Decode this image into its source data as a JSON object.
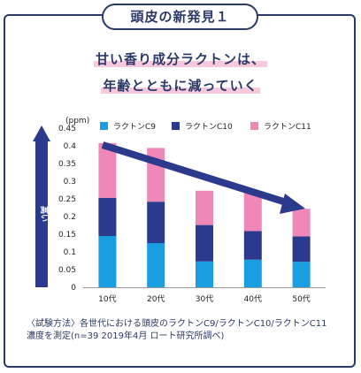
{
  "header": {
    "tag": "頭皮の新発見１"
  },
  "headline": {
    "line1": "甘い香り成分ラクトンは、",
    "line2": "年齢とともに減っていく"
  },
  "axis_arrow_label": "高い",
  "note": {
    "line1": "〈試験方法〉各世代における頭皮のラクトンC9/ラクトンC10/ラクトンC11",
    "line2": "濃度を測定(n=39 2019年4月 ロート研究所調べ)"
  },
  "chart_data": {
    "type": "bar",
    "stacked": true,
    "ylabel": "(ppm)",
    "ylim": [
      0,
      0.45
    ],
    "yticks": [
      "0",
      "0.05",
      "0.1",
      "0.15",
      "0.2",
      "0.25",
      "0.3",
      "0.35",
      "0.4",
      "0.45"
    ],
    "categories": [
      "10代",
      "20代",
      "30代",
      "40代",
      "50代"
    ],
    "legend_position": "top",
    "series": [
      {
        "name": "ラクトンC9",
        "color": "#1a9ee2",
        "values": [
          0.145,
          0.125,
          0.073,
          0.078,
          0.072
        ]
      },
      {
        "name": "ラクトンC10",
        "color": "#2b3a8c",
        "values": [
          0.108,
          0.117,
          0.103,
          0.081,
          0.072
        ]
      },
      {
        "name": "ラクトンC11",
        "color": "#ef88b8",
        "values": [
          0.155,
          0.152,
          0.097,
          0.108,
          0.078
        ]
      }
    ],
    "trend_arrow": "down"
  }
}
